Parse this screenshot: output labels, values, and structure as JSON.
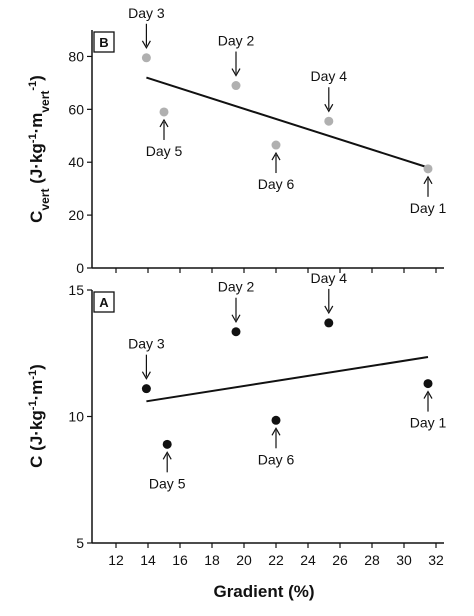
{
  "chart_data": [
    {
      "panel": "B",
      "type": "scatter",
      "ylabel": "Cvert (J·kg-1·mvert-1)",
      "ylabel_parts": {
        "main": "C",
        "sub": "vert",
        "open": " (J·kg",
        "sup1": "-1",
        "mid": "·m",
        "sub2": "vert",
        "sup2": "-1",
        "close": ")"
      },
      "xlim": [
        10.5,
        32.5
      ],
      "ylim": [
        0,
        90
      ],
      "yticks": [
        0,
        20,
        40,
        60,
        80
      ],
      "xticks": [
        12,
        14,
        16,
        18,
        20,
        22,
        24,
        26,
        28,
        30,
        32
      ],
      "point_color": "#b0b0b0",
      "points": [
        {
          "label": "Day 3",
          "x": 13.9,
          "y": 79.5,
          "arrow": "down"
        },
        {
          "label": "Day 5",
          "x": 15.0,
          "y": 59.0,
          "arrow": "up"
        },
        {
          "label": "Day 2",
          "x": 19.5,
          "y": 69.0,
          "arrow": "down"
        },
        {
          "label": "Day 6",
          "x": 22.0,
          "y": 46.5,
          "arrow": "up"
        },
        {
          "label": "Day 4",
          "x": 25.3,
          "y": 55.5,
          "arrow": "down"
        },
        {
          "label": "Day 1",
          "x": 31.5,
          "y": 37.5,
          "arrow": "up"
        }
      ],
      "trendline": {
        "x": [
          13.9,
          31.5
        ],
        "y": [
          72,
          38
        ]
      }
    },
    {
      "panel": "A",
      "type": "scatter",
      "ylabel": "C (J·kg-1·m-1)",
      "ylabel_parts": {
        "main": "C (J·kg",
        "sup1": "-1",
        "mid": "·m",
        "sup2": "-1",
        "close": ")"
      },
      "xlabel": "Gradient (%)",
      "xlim": [
        10.5,
        32.5
      ],
      "ylim": [
        5,
        15
      ],
      "yticks": [
        5,
        10,
        15
      ],
      "xticks": [
        12,
        14,
        16,
        18,
        20,
        22,
        24,
        26,
        28,
        30,
        32
      ],
      "point_color": "#111111",
      "points": [
        {
          "label": "Day 3",
          "x": 13.9,
          "y": 11.1,
          "arrow": "down"
        },
        {
          "label": "Day 5",
          "x": 15.2,
          "y": 8.9,
          "arrow": "up"
        },
        {
          "label": "Day 2",
          "x": 19.5,
          "y": 13.35,
          "arrow": "down"
        },
        {
          "label": "Day 6",
          "x": 22.0,
          "y": 9.85,
          "arrow": "up"
        },
        {
          "label": "Day 4",
          "x": 25.3,
          "y": 13.7,
          "arrow": "down"
        },
        {
          "label": "Day 1",
          "x": 31.5,
          "y": 11.3,
          "arrow": "up"
        }
      ],
      "trendline": {
        "x": [
          13.9,
          31.5
        ],
        "y": [
          10.6,
          12.35
        ]
      }
    }
  ]
}
